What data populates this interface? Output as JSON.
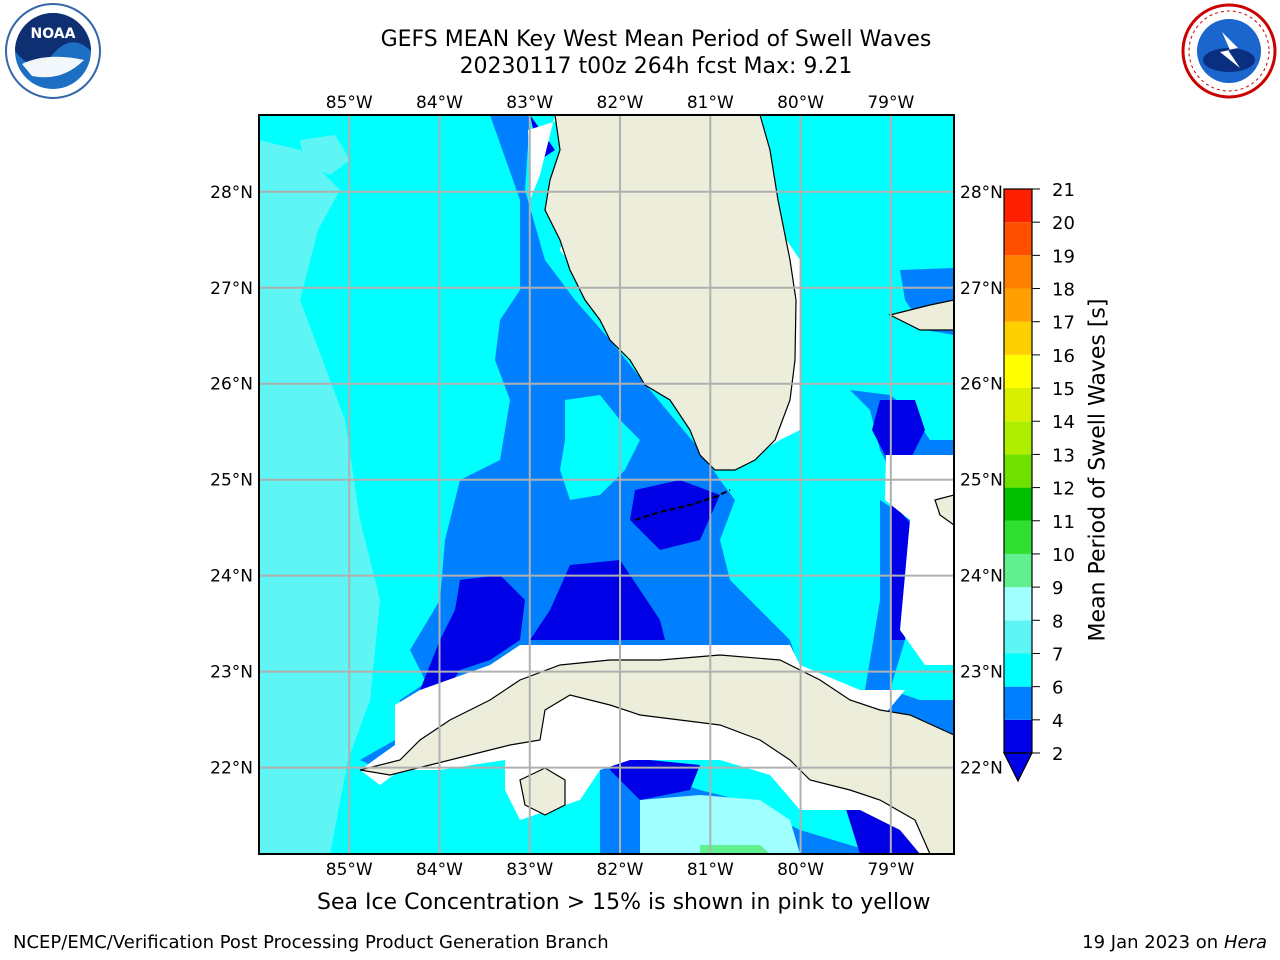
{
  "header": {
    "title_line1": "GEFS MEAN Key West Mean Period of Swell Waves",
    "title_line2": "20230117 t00z 264h fcst   Max: 9.21",
    "left_logo": "noaa-logo",
    "right_logo": "national-weather-service-logo"
  },
  "map": {
    "lon_labels": [
      "85°W",
      "84°W",
      "83°W",
      "82°W",
      "81°W",
      "80°W",
      "79°W"
    ],
    "lat_labels": [
      "28°N",
      "27°N",
      "26°N",
      "25°N",
      "24°N",
      "23°N",
      "22°N"
    ],
    "extent": {
      "lon": [
        -86.0,
        -78.3
      ],
      "lat": [
        21.1,
        28.8
      ]
    },
    "colors": {
      "land": "#ededdc",
      "no_data": "#ffffff",
      "period_2_4": "#0000e6",
      "period_4_6": "#0080ff",
      "period_6_8": "#00ffff",
      "period_8_9": "#60f5f5",
      "period_9_10": "#a0ffff",
      "gridline": "#b0b0b0"
    }
  },
  "colorbar": {
    "title": "Mean Period of Swell Waves [s]",
    "ticks": [
      "2",
      "4",
      "6",
      "7",
      "8",
      "9",
      "10",
      "11",
      "12",
      "13",
      "14",
      "15",
      "16",
      "17",
      "18",
      "19",
      "20",
      "21"
    ],
    "colors": [
      "#0000e6",
      "#0080ff",
      "#00ffff",
      "#60f5f5",
      "#a0ffff",
      "#60f090",
      "#30e030",
      "#00c000",
      "#70e000",
      "#b0ee00",
      "#d8f000",
      "#ffff00",
      "#ffd000",
      "#ffa000",
      "#ff8000",
      "#ff5000",
      "#ff2000",
      "#ff0000"
    ],
    "under_color": "#0000e6"
  },
  "notes": {
    "sea_ice": "Sea Ice Concentration > 15% is shown in pink to yellow"
  },
  "footer": {
    "left": "NCEP/EMC/Verification Post Processing Product Generation Branch",
    "right_prefix": "19 Jan 2023 on ",
    "right_host": "Hera"
  }
}
